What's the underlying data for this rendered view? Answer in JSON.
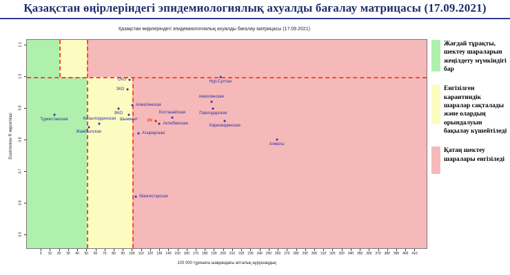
{
  "page_title": "Қазақстан өңірлеріндегі эпидемиологиялық ахуалды бағалау матрицасы  (17.09.2021)",
  "colors": {
    "title": "#1d2d6b",
    "title_rule": "#2e3d8f",
    "zone_green": "#aff0ad",
    "zone_yellow": "#fdfcc0",
    "zone_red": "#f5b9b9",
    "dashed_line": "#ff4633",
    "point": "#3a35b5",
    "point_label": "#2d2da5",
    "highlight": "#ff0000"
  },
  "chart_data": {
    "type": "scatter",
    "title": "Қазақстан өңірлеріндегі эпидемиологиялық ахуалды бағалау матрицасы  (17.09.2021)",
    "xlabel": "100 000 тұрғынға шаққандағы апталық аурушаңдық",
    "ylabel": "Есептелген R көрсеткіші",
    "xlim": [
      -16,
      424
    ],
    "ylim": [
      0.455,
      1.118
    ],
    "x_ticks": {
      "start": 0,
      "end": 410,
      "step": 10
    },
    "y_ticks": {
      "start": 0.5,
      "end": 1.1,
      "step": 0.1
    },
    "grid": false,
    "legend_position": "right",
    "zones": [
      {
        "name": "green-low",
        "color": "zone_green",
        "x1": -16,
        "x2": 50,
        "y1": 0.455,
        "y2": 1.0
      },
      {
        "name": "yellow-low",
        "color": "zone_yellow",
        "x1": 50,
        "x2": 100,
        "y1": 0.455,
        "y2": 1.0
      },
      {
        "name": "red-low",
        "color": "zone_red",
        "x1": 100,
        "x2": 424,
        "y1": 0.455,
        "y2": 1.0
      },
      {
        "name": "green-high",
        "color": "zone_green",
        "x1": -16,
        "x2": 20,
        "y1": 1.0,
        "y2": 1.118
      },
      {
        "name": "yellow-high",
        "color": "zone_yellow",
        "x1": 20,
        "x2": 50,
        "y1": 1.0,
        "y2": 1.118
      },
      {
        "name": "red-high",
        "color": "zone_red",
        "x1": 50,
        "x2": 424,
        "y1": 1.0,
        "y2": 1.118
      }
    ],
    "dashed_lines": [
      {
        "type": "h",
        "at": 1.0,
        "from": -16,
        "to": 424
      },
      {
        "type": "v",
        "at": 50,
        "from": 0.455,
        "to": 1.118
      },
      {
        "type": "v",
        "at": 20,
        "from": 1.0,
        "to": 1.118
      },
      {
        "type": "v",
        "at": 100,
        "from": 0.455,
        "to": 1.0
      }
    ],
    "points": [
      {
        "name": "Нур-Султан",
        "x": 197,
        "y": 1.0,
        "label_pos": "below"
      },
      {
        "name": "СКО",
        "x": 97,
        "y": 0.99,
        "label_pos": "left"
      },
      {
        "name": "ЗКО",
        "x": 95,
        "y": 0.96,
        "label_pos": "left"
      },
      {
        "name": "Акмолинская",
        "x": 187,
        "y": 0.92,
        "label_pos": "above"
      },
      {
        "name": "Алматинская",
        "x": 100,
        "y": 0.91,
        "label_pos": "right"
      },
      {
        "name": "Павлодарская",
        "x": 189,
        "y": 0.9,
        "label_pos": "below"
      },
      {
        "name": "ВКО",
        "x": 85,
        "y": 0.9,
        "label_pos": "below"
      },
      {
        "name": "Туркестанская",
        "x": 14,
        "y": 0.88,
        "label_pos": "below"
      },
      {
        "name": "Шымкент",
        "x": 96,
        "y": 0.88,
        "label_pos": "below"
      },
      {
        "name": "Костанайская",
        "x": 144,
        "y": 0.87,
        "label_pos": "above"
      },
      {
        "name": "РК",
        "x": 126,
        "y": 0.86,
        "label_pos": "left",
        "highlight": true
      },
      {
        "name": "Карагандинская",
        "x": 202,
        "y": 0.86,
        "label_pos": "below"
      },
      {
        "name": "Кызылординская",
        "x": 64,
        "y": 0.85,
        "label_pos": "above"
      },
      {
        "name": "Актюбинская",
        "x": 130,
        "y": 0.85,
        "label_pos": "right"
      },
      {
        "name": "Жамбылская",
        "x": 52,
        "y": 0.84,
        "label_pos": "below"
      },
      {
        "name": "Атырауская",
        "x": 107,
        "y": 0.82,
        "label_pos": "right"
      },
      {
        "name": "Алматы",
        "x": 259,
        "y": 0.8,
        "label_pos": "below"
      },
      {
        "name": "Мангистауская",
        "x": 104,
        "y": 0.62,
        "label_pos": "right"
      }
    ]
  },
  "legend": {
    "items": [
      {
        "color": "zone_green",
        "text": "Жағдай тұрақты, шектеу шараларын жеңілдету мүмкіндігі бар"
      },
      {
        "color": "zone_yellow",
        "text": "Енгізілген карантиндік шаралар сақталады және олардың орындалуын бақылау күшейтіледі"
      },
      {
        "color": "zone_red",
        "text": "Қатаң шектеу шаралары енгізіледі"
      }
    ]
  }
}
